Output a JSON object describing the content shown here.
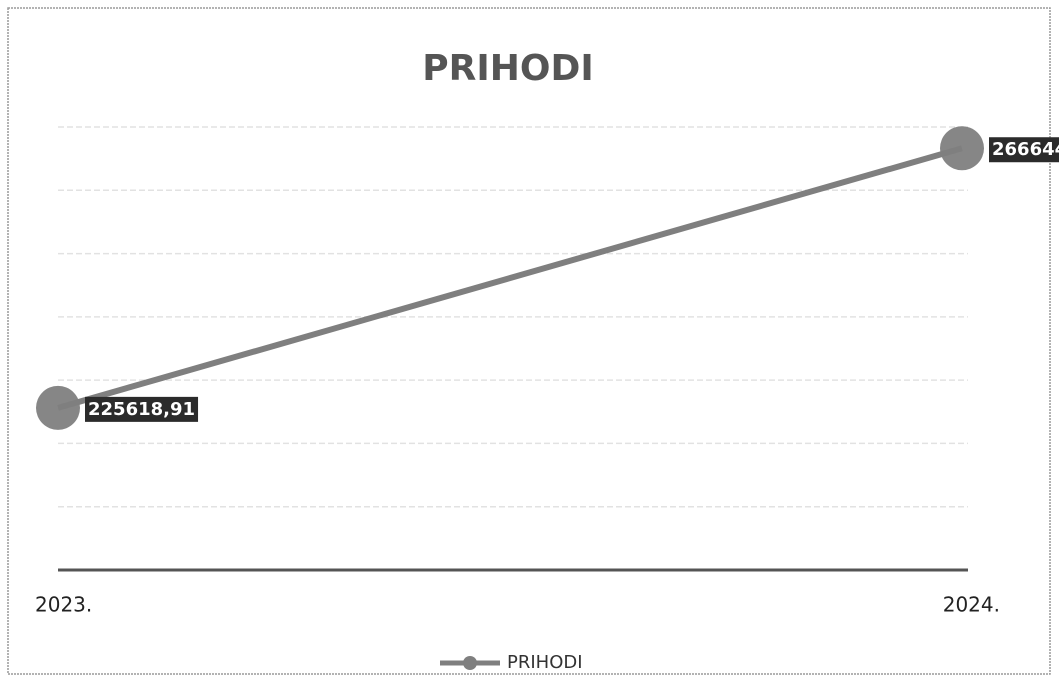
{
  "chart_data": {
    "type": "line",
    "title": "PRIHODI",
    "categories": [
      "2023.",
      "2024."
    ],
    "series": [
      {
        "name": "PRIHODI",
        "color": "#7f7f7f",
        "values": [
          225618.91,
          266644
        ],
        "value_labels": [
          "225618,91",
          "266644"
        ]
      }
    ],
    "ylim": [
      200000,
      270000
    ],
    "yticks": [
      200000,
      210000,
      220000,
      230000,
      240000,
      250000,
      260000,
      270000
    ],
    "grid": true,
    "legend": "bottom"
  }
}
